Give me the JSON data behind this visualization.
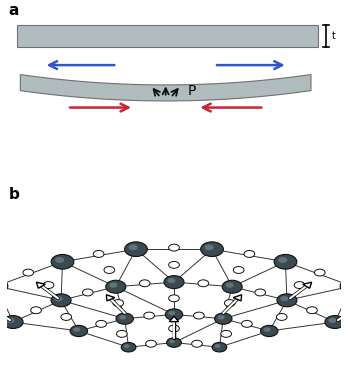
{
  "bg_color": "#ffffff",
  "slab_color": "#b0bcbe",
  "slab_edge_color": "#707070",
  "label_a": "a",
  "label_b": "b",
  "label_P": "P",
  "label_t": "t",
  "blue_arrow_color": "#3355cc",
  "red_arrow_color": "#cc2233",
  "black_arrow_color": "#111111",
  "atom_dark_color": "#3a4a50",
  "atom_dark_edge": "#111111",
  "atom_light_color": "#ffffff",
  "atom_light_edge": "#111111",
  "bond_color": "#333333",
  "arrow_white": "#ffffff",
  "arrow_black": "#111111"
}
